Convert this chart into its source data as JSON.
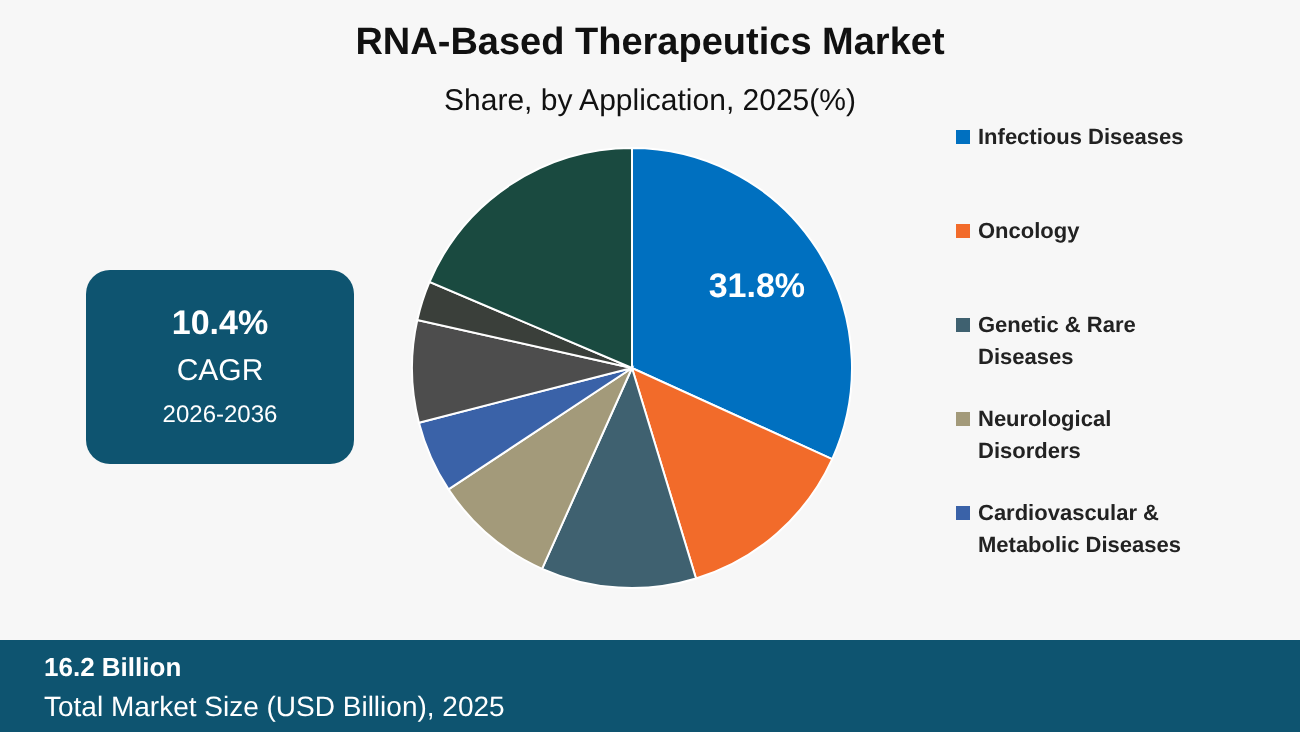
{
  "chart_data": {
    "type": "pie",
    "title": "RNA-Based Therapeutics Market",
    "subtitle": "Share, by Application, 2025(%)",
    "categories": [
      "Infectious Diseases",
      "Oncology",
      "Genetic & Rare Diseases",
      "Neurological Disorders",
      "Cardiovascular & Metabolic Diseases",
      null,
      null,
      null
    ],
    "values": [
      31.8,
      13.5,
      11.4,
      9.0,
      5.3,
      7.5,
      2.9,
      18.6
    ],
    "colors": [
      "#0070c0",
      "#f26b2a",
      "#3f6170",
      "#a39a7a",
      "#3a62a8",
      "#4d4d4d",
      "#3a3f3a",
      "#1a4a40"
    ],
    "value_labels": [
      "31.8%",
      null,
      null,
      null,
      null,
      null,
      null,
      null
    ],
    "legend": "right",
    "annotations": [
      "10.4%",
      "CAGR",
      "2026-2036",
      "16.2 Billion",
      "Total Market Size (USD Billion), 2025"
    ]
  }
}
